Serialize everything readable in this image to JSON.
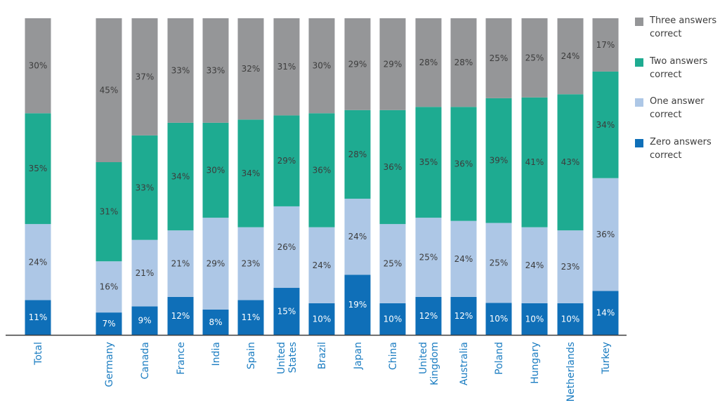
{
  "chart_data": {
    "type": "bar",
    "stacked": true,
    "percent": true,
    "categories": [
      "Total",
      "Germany",
      "Canada",
      "France",
      "India",
      "Spain",
      "United States",
      "Brazil",
      "Japan",
      "China",
      "United Kingdom",
      "Australia",
      "Poland",
      "Hungary",
      "Netherlands",
      "Turkey"
    ],
    "series": [
      {
        "name": "Zero answers correct",
        "color": "#0f6fb8",
        "values": [
          11,
          7,
          9,
          12,
          8,
          11,
          15,
          10,
          19,
          10,
          12,
          12,
          10,
          10,
          10,
          14
        ]
      },
      {
        "name": "One answer correct",
        "color": "#adc7e6",
        "values": [
          24,
          16,
          21,
          21,
          29,
          23,
          26,
          24,
          24,
          25,
          25,
          24,
          25,
          24,
          23,
          36
        ]
      },
      {
        "name": "Two answers correct",
        "color": "#1eab91",
        "values": [
          35,
          31,
          33,
          34,
          30,
          34,
          29,
          36,
          28,
          36,
          35,
          36,
          39,
          41,
          43,
          34
        ]
      },
      {
        "name": "Three answers correct",
        "color": "#959698",
        "values": [
          30,
          45,
          37,
          33,
          33,
          32,
          31,
          30,
          29,
          29,
          28,
          28,
          25,
          25,
          24,
          17
        ]
      }
    ],
    "data_labels": true,
    "legend_position": "right",
    "grid": false,
    "ylim": [
      0,
      100
    ],
    "colors": {
      "axis": "#3c3c3c",
      "category_label": "#1a7cc1",
      "label_dark": "#3c3c3c",
      "label_light": "#ffffff"
    }
  },
  "legend": {
    "items": [
      {
        "label": "Three answers correct",
        "color": "#959698"
      },
      {
        "label": "Two answers correct",
        "color": "#1eab91"
      },
      {
        "label": "One answer correct",
        "color": "#adc7e6"
      },
      {
        "label": "Zero answers correct",
        "color": "#0f6fb8"
      }
    ]
  }
}
